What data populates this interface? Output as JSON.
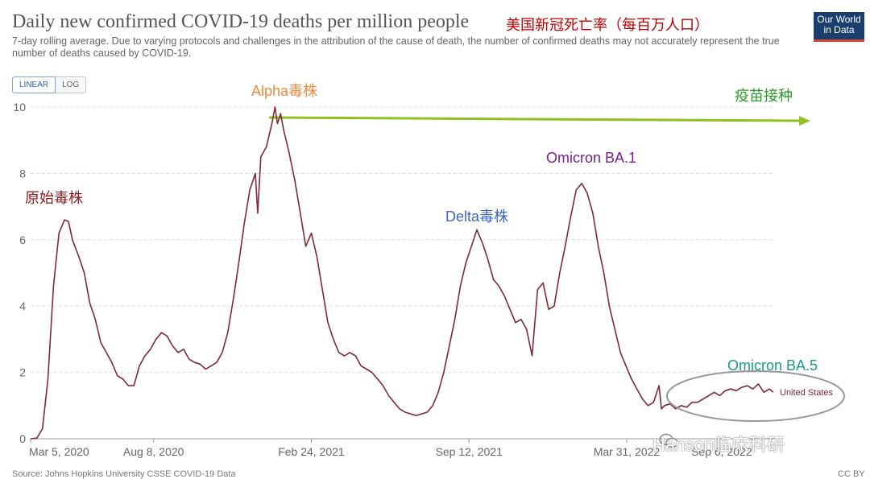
{
  "title": "Daily new confirmed COVID-19 deaths per million people",
  "title_annotation": "美国新冠死亡率（每百万人口）",
  "subtitle": "7-day rolling average. Due to varying protocols and challenges in the attribution of the cause of death, the number of confirmed deaths may not accurately represent the true number of deaths caused by COVID-19.",
  "logo": {
    "line1": "Our World",
    "line2": "in Data"
  },
  "scale_toggle": {
    "linear": "LINEAR",
    "log": "LOG",
    "selected": "LINEAR"
  },
  "source": "Source: Johns Hopkins University CSSE COVID-19 Data",
  "license": "CC BY",
  "watermark": "Hanson临床科研",
  "colors": {
    "line": "#7f2a35",
    "arrow": "#8dc21f",
    "grid": "#dddddd",
    "ellipse": "#999999"
  },
  "chart_data": {
    "type": "line",
    "title": "Daily new confirmed COVID-19 deaths per million people",
    "ylim": [
      0,
      10
    ],
    "yticks": [
      "0",
      "2",
      "4",
      "6",
      "8",
      "10"
    ],
    "xticks": [
      "Mar 5, 2020",
      "Aug 8, 2020",
      "Feb 24, 2021",
      "Sep 12, 2021",
      "Mar 31, 2022",
      "Sep 6, 2022"
    ],
    "xlim": [
      "2020-03-05",
      "2022-10-05"
    ],
    "grid": "horizontal dashed",
    "series": [
      {
        "name": "United States",
        "points": [
          [
            "2020-03-05",
            0
          ],
          [
            "2020-03-13",
            0.02
          ],
          [
            "2020-03-20",
            0.3
          ],
          [
            "2020-03-27",
            1.8
          ],
          [
            "2020-04-03",
            4.6
          ],
          [
            "2020-04-10",
            6.2
          ],
          [
            "2020-04-17",
            6.6
          ],
          [
            "2020-04-22",
            6.55
          ],
          [
            "2020-04-27",
            6.0
          ],
          [
            "2020-05-05",
            5.5
          ],
          [
            "2020-05-12",
            5.0
          ],
          [
            "2020-05-19",
            4.1
          ],
          [
            "2020-05-26",
            3.6
          ],
          [
            "2020-06-02",
            2.9
          ],
          [
            "2020-06-09",
            2.6
          ],
          [
            "2020-06-16",
            2.3
          ],
          [
            "2020-06-23",
            1.9
          ],
          [
            "2020-06-30",
            1.8
          ],
          [
            "2020-07-07",
            1.6
          ],
          [
            "2020-07-14",
            1.6
          ],
          [
            "2020-07-21",
            2.2
          ],
          [
            "2020-07-28",
            2.5
          ],
          [
            "2020-08-04",
            2.7
          ],
          [
            "2020-08-11",
            3.0
          ],
          [
            "2020-08-18",
            3.2
          ],
          [
            "2020-08-25",
            3.1
          ],
          [
            "2020-09-01",
            2.8
          ],
          [
            "2020-09-08",
            2.6
          ],
          [
            "2020-09-15",
            2.7
          ],
          [
            "2020-09-22",
            2.4
          ],
          [
            "2020-09-29",
            2.3
          ],
          [
            "2020-10-06",
            2.25
          ],
          [
            "2020-10-13",
            2.1
          ],
          [
            "2020-10-20",
            2.2
          ],
          [
            "2020-10-27",
            2.3
          ],
          [
            "2020-11-03",
            2.6
          ],
          [
            "2020-11-10",
            3.2
          ],
          [
            "2020-11-17",
            4.2
          ],
          [
            "2020-11-24",
            5.3
          ],
          [
            "2020-12-01",
            6.5
          ],
          [
            "2020-12-08",
            7.5
          ],
          [
            "2020-12-15",
            8.0
          ],
          [
            "2020-12-18",
            6.8
          ],
          [
            "2020-12-22",
            8.5
          ],
          [
            "2020-12-29",
            8.8
          ],
          [
            "2021-01-05",
            9.5
          ],
          [
            "2021-01-09",
            10.0
          ],
          [
            "2021-01-12",
            9.5
          ],
          [
            "2021-01-16",
            9.8
          ],
          [
            "2021-01-20",
            9.3
          ],
          [
            "2021-01-27",
            8.6
          ],
          [
            "2021-02-03",
            7.8
          ],
          [
            "2021-02-10",
            6.8
          ],
          [
            "2021-02-17",
            5.8
          ],
          [
            "2021-02-24",
            6.2
          ],
          [
            "2021-03-03",
            5.5
          ],
          [
            "2021-03-10",
            4.5
          ],
          [
            "2021-03-17",
            3.5
          ],
          [
            "2021-03-24",
            3.0
          ],
          [
            "2021-03-31",
            2.6
          ],
          [
            "2021-04-07",
            2.5
          ],
          [
            "2021-04-14",
            2.6
          ],
          [
            "2021-04-21",
            2.5
          ],
          [
            "2021-04-28",
            2.2
          ],
          [
            "2021-05-05",
            2.1
          ],
          [
            "2021-05-12",
            2.0
          ],
          [
            "2021-05-19",
            1.8
          ],
          [
            "2021-05-26",
            1.6
          ],
          [
            "2021-06-02",
            1.3
          ],
          [
            "2021-06-09",
            1.1
          ],
          [
            "2021-06-16",
            0.9
          ],
          [
            "2021-06-23",
            0.8
          ],
          [
            "2021-06-30",
            0.75
          ],
          [
            "2021-07-07",
            0.7
          ],
          [
            "2021-07-14",
            0.75
          ],
          [
            "2021-07-21",
            0.8
          ],
          [
            "2021-07-28",
            1.0
          ],
          [
            "2021-08-04",
            1.4
          ],
          [
            "2021-08-11",
            2.0
          ],
          [
            "2021-08-18",
            2.8
          ],
          [
            "2021-08-25",
            3.6
          ],
          [
            "2021-09-01",
            4.6
          ],
          [
            "2021-09-08",
            5.3
          ],
          [
            "2021-09-15",
            5.8
          ],
          [
            "2021-09-22",
            6.3
          ],
          [
            "2021-09-29",
            5.9
          ],
          [
            "2021-10-06",
            5.4
          ],
          [
            "2021-10-13",
            4.8
          ],
          [
            "2021-10-20",
            4.6
          ],
          [
            "2021-10-27",
            4.3
          ],
          [
            "2021-11-03",
            3.9
          ],
          [
            "2021-11-10",
            3.5
          ],
          [
            "2021-11-17",
            3.6
          ],
          [
            "2021-11-24",
            3.3
          ],
          [
            "2021-12-01",
            2.5
          ],
          [
            "2021-12-08",
            4.5
          ],
          [
            "2021-12-15",
            4.7
          ],
          [
            "2021-12-22",
            3.9
          ],
          [
            "2021-12-29",
            4.0
          ],
          [
            "2022-01-05",
            5.0
          ],
          [
            "2022-01-12",
            5.8
          ],
          [
            "2022-01-19",
            6.7
          ],
          [
            "2022-01-26",
            7.5
          ],
          [
            "2022-02-02",
            7.7
          ],
          [
            "2022-02-09",
            7.4
          ],
          [
            "2022-02-16",
            6.8
          ],
          [
            "2022-02-23",
            5.8
          ],
          [
            "2022-03-02",
            5.0
          ],
          [
            "2022-03-09",
            4.0
          ],
          [
            "2022-03-16",
            3.3
          ],
          [
            "2022-03-23",
            2.6
          ],
          [
            "2022-03-30",
            2.2
          ],
          [
            "2022-04-06",
            1.8
          ],
          [
            "2022-04-13",
            1.5
          ],
          [
            "2022-04-20",
            1.2
          ],
          [
            "2022-04-27",
            1.0
          ],
          [
            "2022-05-04",
            1.1
          ],
          [
            "2022-05-11",
            1.6
          ],
          [
            "2022-05-14",
            0.9
          ],
          [
            "2022-05-18",
            1.0
          ],
          [
            "2022-05-25",
            1.05
          ],
          [
            "2022-06-01",
            0.9
          ],
          [
            "2022-06-08",
            1.0
          ],
          [
            "2022-06-15",
            0.95
          ],
          [
            "2022-06-22",
            1.1
          ],
          [
            "2022-06-29",
            1.1
          ],
          [
            "2022-07-06",
            1.2
          ],
          [
            "2022-07-13",
            1.3
          ],
          [
            "2022-07-20",
            1.4
          ],
          [
            "2022-07-27",
            1.3
          ],
          [
            "2022-08-03",
            1.45
          ],
          [
            "2022-08-10",
            1.5
          ],
          [
            "2022-08-17",
            1.45
          ],
          [
            "2022-08-24",
            1.55
          ],
          [
            "2022-08-31",
            1.6
          ],
          [
            "2022-09-07",
            1.5
          ],
          [
            "2022-09-14",
            1.65
          ],
          [
            "2022-09-21",
            1.4
          ],
          [
            "2022-09-28",
            1.5
          ],
          [
            "2022-10-03",
            1.4
          ]
        ]
      }
    ],
    "annotations": [
      {
        "text": "原始毒株",
        "color": "#8b1a1a"
      },
      {
        "text": "Alpha毒株",
        "color": "#f08a3c"
      },
      {
        "text": "Delta毒株",
        "color": "#3a68c9"
      },
      {
        "text": "Omicron BA.1",
        "color": "#7a1f8a"
      },
      {
        "text": "Omicron BA.5",
        "color": "#1a9a8a"
      },
      {
        "text": "疫苗接种",
        "color": "#2a9a2a"
      }
    ]
  }
}
